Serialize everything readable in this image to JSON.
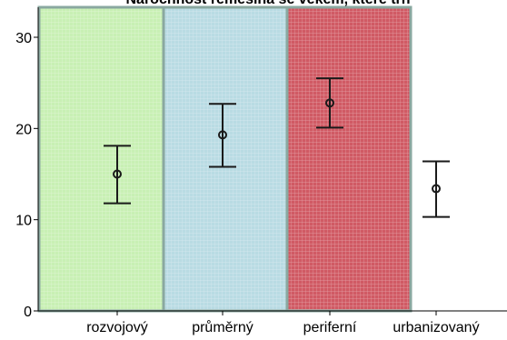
{
  "chart_data": {
    "type": "errorbar",
    "title": "Nárochnost řemeslná se věkem, které trh",
    "xlabel": "",
    "ylabel": "",
    "ylim": [
      0,
      30
    ],
    "yticks": [
      0,
      10,
      20,
      30
    ],
    "grid": false,
    "categories": [
      "rozvojový",
      "průměrný",
      "periferní",
      "urbanizovaný"
    ],
    "series": [
      {
        "mean": [
          15.0,
          19.3,
          22.8,
          13.4
        ],
        "lower": [
          11.8,
          15.8,
          20.1,
          10.3
        ],
        "upper": [
          18.1,
          22.7,
          25.5,
          16.4
        ]
      }
    ],
    "backgrounds": [
      "#c8f0b4",
      "#b9dbe3",
      "#d05a64",
      "#ffffff"
    ],
    "panel_border": "#8aa8a0"
  }
}
